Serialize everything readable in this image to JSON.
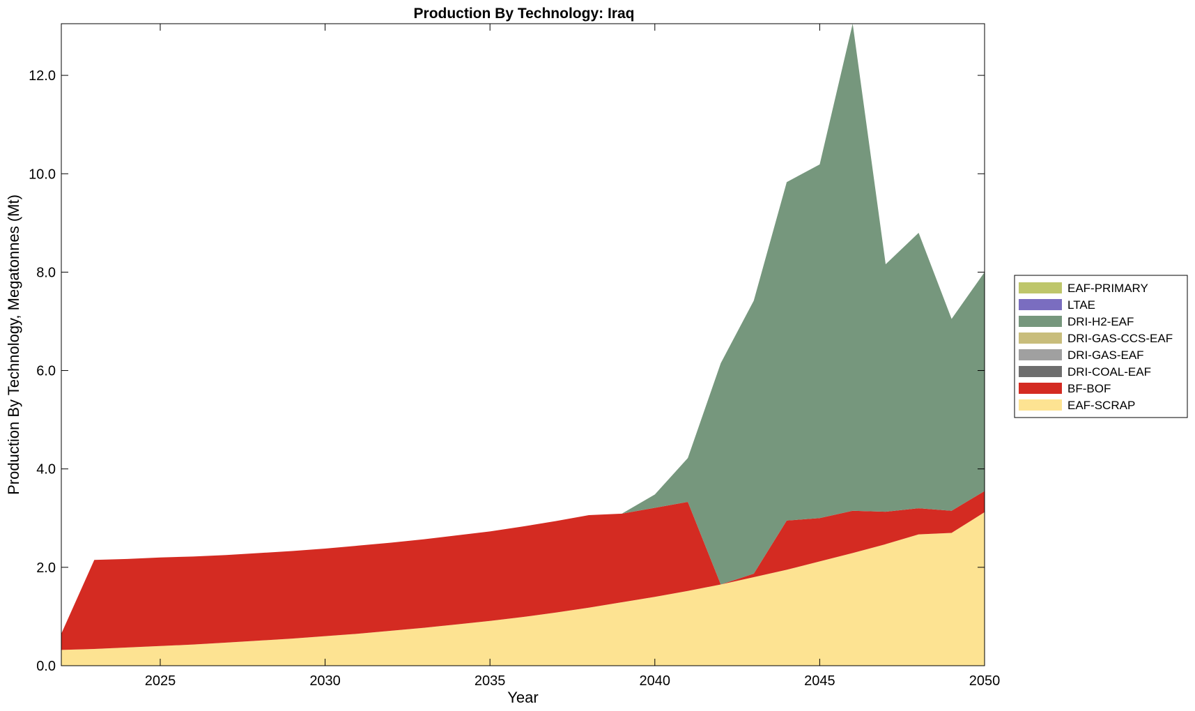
{
  "chart_data": {
    "type": "area",
    "stacked": true,
    "title": "Production By Technology: Iraq",
    "xlabel": "Year",
    "ylabel": "Production By Technology, Megatonnes (Mt)",
    "xlim": [
      2022,
      2050
    ],
    "ylim": [
      0,
      13.05
    ],
    "xticks": [
      2025,
      2030,
      2035,
      2040,
      2045,
      2050
    ],
    "yticks": [
      0.0,
      2.0,
      4.0,
      6.0,
      8.0,
      10.0,
      12.0
    ],
    "ytick_labels": [
      "0.0",
      "2.0",
      "4.0",
      "6.0",
      "8.0",
      "10.0",
      "12.0"
    ],
    "legend_position": "right",
    "x": [
      2022,
      2023,
      2024,
      2025,
      2026,
      2027,
      2028,
      2029,
      2030,
      2031,
      2032,
      2033,
      2034,
      2035,
      2036,
      2037,
      2038,
      2039,
      2040,
      2041,
      2042,
      2043,
      2044,
      2045,
      2046,
      2047,
      2048,
      2049,
      2050
    ],
    "series": [
      {
        "name": "EAF-SCRAP",
        "color": "#fde392",
        "values": [
          0.32,
          0.34,
          0.37,
          0.4,
          0.43,
          0.47,
          0.51,
          0.55,
          0.6,
          0.65,
          0.71,
          0.77,
          0.84,
          0.91,
          0.99,
          1.08,
          1.18,
          1.29,
          1.4,
          1.52,
          1.65,
          1.8,
          1.95,
          2.12,
          2.29,
          2.47,
          2.67,
          2.7,
          3.12
        ]
      },
      {
        "name": "BF-BOF",
        "color": "#d42b22",
        "values": [
          0.33,
          1.81,
          1.8,
          1.8,
          1.79,
          1.78,
          1.78,
          1.78,
          1.78,
          1.79,
          1.79,
          1.8,
          1.81,
          1.82,
          1.84,
          1.86,
          1.88,
          1.8,
          1.81,
          1.81,
          0.0,
          0.07,
          1.0,
          0.88,
          0.86,
          0.66,
          0.53,
          0.45,
          0.43
        ]
      },
      {
        "name": "DRI-COAL-EAF",
        "color": "#6e6e6e",
        "values": [
          0,
          0,
          0,
          0,
          0,
          0,
          0,
          0,
          0,
          0,
          0,
          0,
          0,
          0,
          0,
          0,
          0,
          0,
          0,
          0,
          0,
          0,
          0,
          0,
          0,
          0,
          0,
          0,
          0
        ]
      },
      {
        "name": "DRI-GAS-EAF",
        "color": "#a0a0a0",
        "values": [
          0,
          0,
          0,
          0,
          0,
          0,
          0,
          0,
          0,
          0,
          0,
          0,
          0,
          0,
          0,
          0,
          0,
          0,
          0,
          0,
          0,
          0,
          0,
          0,
          0,
          0,
          0,
          0,
          0
        ]
      },
      {
        "name": "DRI-GAS-CCS-EAF",
        "color": "#c8bd7c",
        "values": [
          0,
          0,
          0,
          0,
          0,
          0,
          0,
          0,
          0,
          0,
          0,
          0,
          0,
          0,
          0,
          0,
          0,
          0,
          0,
          0,
          0,
          0,
          0,
          0,
          0,
          0,
          0,
          0,
          0
        ]
      },
      {
        "name": "DRI-H2-EAF",
        "color": "#76977d",
        "values": [
          0,
          0,
          0,
          0,
          0,
          0,
          0,
          0,
          0,
          0,
          0,
          0,
          0,
          0,
          0,
          0,
          0,
          0,
          0.27,
          0.89,
          4.5,
          5.55,
          6.88,
          7.19,
          9.9,
          5.03,
          5.6,
          3.9,
          4.45
        ]
      },
      {
        "name": "LTAE",
        "color": "#7a6dc0",
        "values": [
          0,
          0,
          0,
          0,
          0,
          0,
          0,
          0,
          0,
          0,
          0,
          0,
          0,
          0,
          0,
          0,
          0,
          0,
          0,
          0,
          0,
          0,
          0,
          0,
          0,
          0,
          0,
          0,
          0
        ]
      },
      {
        "name": "EAF-PRIMARY",
        "color": "#bec66b",
        "values": [
          0,
          0,
          0,
          0,
          0,
          0,
          0,
          0,
          0,
          0,
          0,
          0,
          0,
          0,
          0,
          0,
          0,
          0,
          0,
          0,
          0,
          0,
          0,
          0,
          0,
          0,
          0,
          0,
          0
        ]
      }
    ],
    "legend_order": [
      "EAF-PRIMARY",
      "LTAE",
      "DRI-H2-EAF",
      "DRI-GAS-CCS-EAF",
      "DRI-GAS-EAF",
      "DRI-COAL-EAF",
      "BF-BOF",
      "EAF-SCRAP"
    ]
  }
}
